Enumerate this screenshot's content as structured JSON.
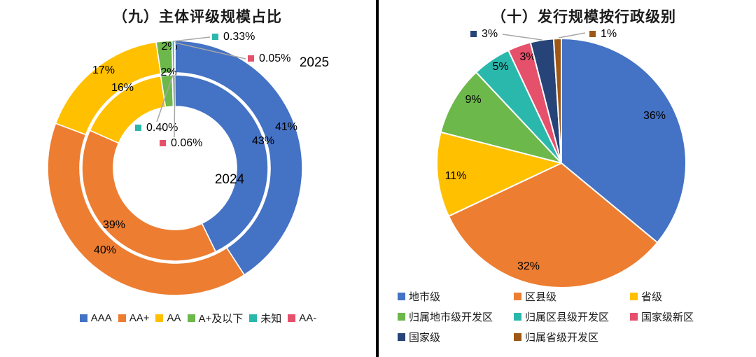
{
  "page": {
    "background": "#ffffff",
    "divider_color": "#000000"
  },
  "chart_data": [
    {
      "type": "donut",
      "title": "（九）主体评级规模占比",
      "categories": [
        "AAA",
        "AA+",
        "AA",
        "A+及以下",
        "未知",
        "AA-"
      ],
      "colors": [
        "#4472C4",
        "#ED7D31",
        "#FFC000",
        "#6CB84A",
        "#2BB8AC",
        "#E5506B"
      ],
      "rings": [
        {
          "name": "2025",
          "position": "outer",
          "values": [
            41,
            40,
            17,
            2,
            0.33,
            0.05
          ],
          "labels": [
            "41%",
            "40%",
            "17%",
            "2%",
            "0.33%",
            "0.05%"
          ]
        },
        {
          "name": "2024",
          "position": "inner",
          "values": [
            43,
            39,
            16,
            2,
            0.4,
            0.06
          ],
          "labels": [
            "43%",
            "39%",
            "16%",
            "2%",
            "0.40%",
            "0.06%"
          ]
        }
      ],
      "callouts": [
        {
          "ring": "2025",
          "category": "未知",
          "text": "0.33%"
        },
        {
          "ring": "2025",
          "category": "AA-",
          "text": "0.05%"
        },
        {
          "ring": "2024",
          "category": "未知",
          "text": "0.40%"
        },
        {
          "ring": "2024",
          "category": "AA-",
          "text": "0.06%"
        }
      ],
      "legend_position": "bottom",
      "legend": [
        "AAA",
        "AA+",
        "AA",
        "A+及以下",
        "未知",
        "AA-"
      ]
    },
    {
      "type": "pie",
      "title": "（十）发行规模按行政级别",
      "categories": [
        "地市级",
        "区县级",
        "省级",
        "归属地市级开发区",
        "归属区县级开发区",
        "国家级新区",
        "国家级",
        "归属省级开发区"
      ],
      "values": [
        36,
        32,
        11,
        9,
        5,
        3,
        3,
        1
      ],
      "labels": [
        "36%",
        "32%",
        "11%",
        "9%",
        "5%",
        "3%",
        "3%",
        "1%"
      ],
      "colors": [
        "#4472C4",
        "#ED7D31",
        "#FFC000",
        "#6CB84A",
        "#2BB8AC",
        "#E5506B",
        "#264478",
        "#9E5714"
      ],
      "callouts": [
        {
          "category": "国家级",
          "text": "3%"
        },
        {
          "category": "归属省级开发区",
          "text": "1%"
        }
      ],
      "legend_position": "bottom",
      "legend": [
        "地市级",
        "区县级",
        "省级",
        "归属地市级开发区",
        "归属区县级开发区",
        "国家级新区",
        "国家级",
        "归属省级开发区"
      ]
    }
  ]
}
